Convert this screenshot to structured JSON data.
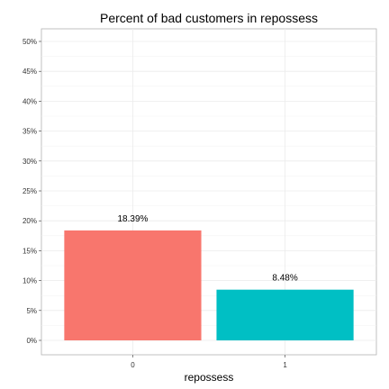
{
  "chart_data": {
    "type": "bar",
    "title": "Percent of bad customers in repossess",
    "xlabel": "repossess",
    "ylabel": "",
    "categories": [
      "0",
      "1"
    ],
    "values": [
      18.39,
      8.48
    ],
    "value_labels": [
      "18.39%",
      "8.48%"
    ],
    "colors": [
      "#F8766D",
      "#00BFC4"
    ],
    "ylim": [
      0,
      50
    ],
    "yticks": [
      0,
      5,
      10,
      15,
      20,
      25,
      30,
      35,
      40,
      45,
      50
    ],
    "ytick_labels": [
      "0%",
      "5%",
      "10%",
      "15%",
      "20%",
      "25%",
      "30%",
      "35%",
      "40%",
      "45%",
      "50%"
    ],
    "grid": true,
    "legend": "none"
  }
}
